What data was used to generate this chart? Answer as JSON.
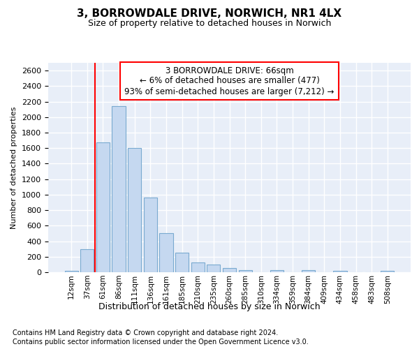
{
  "title1": "3, BORROWDALE DRIVE, NORWICH, NR1 4LX",
  "title2": "Size of property relative to detached houses in Norwich",
  "xlabel": "Distribution of detached houses by size in Norwich",
  "ylabel": "Number of detached properties",
  "footer1": "Contains HM Land Registry data © Crown copyright and database right 2024.",
  "footer2": "Contains public sector information licensed under the Open Government Licence v3.0.",
  "annotation_line1": "3 BORROWDALE DRIVE: 66sqm",
  "annotation_line2": "← 6% of detached houses are smaller (477)",
  "annotation_line3": "93% of semi-detached houses are larger (7,212) →",
  "bar_color": "#c5d8f0",
  "bar_edge_color": "#7aaad0",
  "vline_color": "red",
  "vline_x_index": 1.5,
  "categories": [
    "12sqm",
    "37sqm",
    "61sqm",
    "86sqm",
    "111sqm",
    "136sqm",
    "161sqm",
    "185sqm",
    "210sqm",
    "235sqm",
    "260sqm",
    "285sqm",
    "310sqm",
    "334sqm",
    "359sqm",
    "384sqm",
    "409sqm",
    "434sqm",
    "458sqm",
    "483sqm",
    "508sqm"
  ],
  "values": [
    20,
    295,
    1670,
    2140,
    1600,
    960,
    505,
    255,
    130,
    100,
    50,
    30,
    0,
    30,
    0,
    30,
    0,
    20,
    0,
    0,
    20
  ],
  "ylim": [
    0,
    2700
  ],
  "yticks": [
    0,
    200,
    400,
    600,
    800,
    1000,
    1200,
    1400,
    1600,
    1800,
    2000,
    2200,
    2400,
    2600
  ],
  "fig_bg_color": "#ffffff",
  "axes_bg_color": "#e8eef8",
  "grid_color": "#ffffff",
  "title1_fontsize": 11,
  "title2_fontsize": 9,
  "ylabel_fontsize": 8,
  "xlabel_fontsize": 9,
  "tick_fontsize": 8,
  "xtick_fontsize": 7.5,
  "footer_fontsize": 7,
  "annot_fontsize": 8.5
}
